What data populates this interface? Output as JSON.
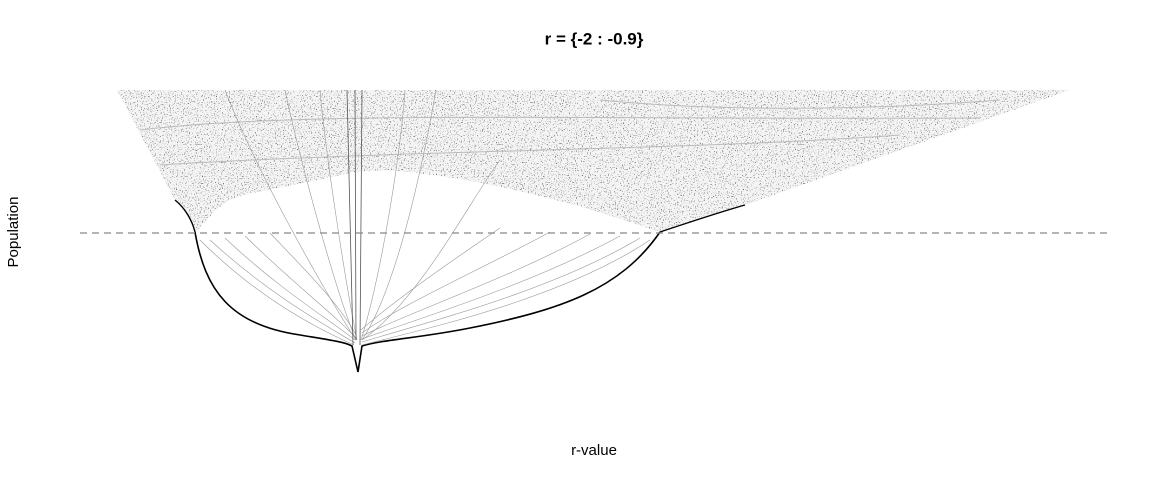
{
  "chart_data": {
    "type": "scatter",
    "title": "r = {-2 : -0.9}",
    "x_label": "r-value",
    "y_label": "Population"
  }
}
